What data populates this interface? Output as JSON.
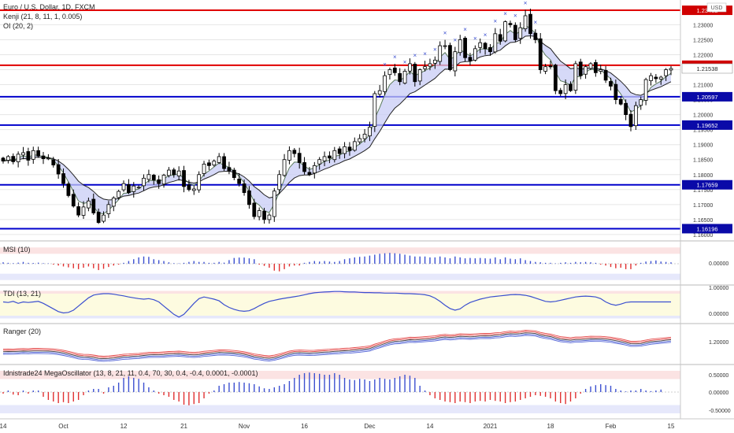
{
  "colors": {
    "up": "#ffffff",
    "down": "#000000",
    "wick": "#000000",
    "hline_blue": "#0000cc",
    "hline_red": "#e00000",
    "band_green": "#5a7a5a",
    "band_dark": "#222222",
    "band_fill_blue": "#c8ccf5",
    "band_fill_red": "#f5c8cc",
    "signal_blue": "#3b4fd0",
    "signal_red": "#e03030",
    "zone_red": "#fbe3e3",
    "zone_blue": "#e6e8fb",
    "zone_yellow": "#fdfbe0",
    "tag_blue": "#0a0aa8",
    "tag_red": "#d00000",
    "axis_text": "#333333",
    "grid": "#e6e6e6"
  },
  "chart_data": [
    {
      "type": "candlestick",
      "pane": "price",
      "title": "Euro / U.S. Dollar, 1D, FXCM",
      "indicator_lines": [
        "Kenji (21, 8, 11, 1, 0.005)",
        "OI (20, 2)"
      ],
      "currency_badge": "USD",
      "x_ticks": [
        "14",
        "Oct",
        "12",
        "21",
        "Nov",
        "16",
        "Dec",
        "14",
        "2021",
        "18",
        "Feb",
        "15"
      ],
      "y_ticks": [
        1.16,
        1.165,
        1.17,
        1.175,
        1.18,
        1.185,
        1.19,
        1.195,
        1.2,
        1.205,
        1.21,
        1.215,
        1.22,
        1.225,
        1.23,
        1.235
      ],
      "y_tick_labels": [
        "1.16000",
        "1.16500",
        "1.17000",
        "1.17500",
        "1.18000",
        "1.18500",
        "1.19000",
        "1.19500",
        "1.20000",
        "1.20500",
        "1.21000",
        "1.21500",
        "1.22000",
        "1.22500",
        "1.23000",
        "1.23500"
      ],
      "ylim": [
        1.1605,
        1.2372
      ],
      "current_price": "1.21538",
      "hlines": [
        {
          "value": 1.23482,
          "label": "1.23482",
          "color": "red"
        },
        {
          "value": 1.21649,
          "label": "1.21649",
          "color": "red"
        },
        {
          "value": 1.20597,
          "label": "1.20597",
          "color": "blue"
        },
        {
          "value": 1.19652,
          "label": "1.19652",
          "color": "blue"
        },
        {
          "value": 1.17659,
          "label": "1.17659",
          "color": "blue"
        },
        {
          "value": 1.16196,
          "label": "1.16196",
          "color": "blue"
        }
      ],
      "closes": [
        1.1845,
        1.186,
        1.1843,
        1.1868,
        1.1873,
        1.1848,
        1.188,
        1.1862,
        1.1853,
        1.1855,
        1.1832,
        1.1802,
        1.177,
        1.173,
        1.1695,
        1.1665,
        1.1692,
        1.1712,
        1.1672,
        1.164,
        1.1665,
        1.17,
        1.1722,
        1.1744,
        1.177,
        1.174,
        1.1762,
        1.1758,
        1.1788,
        1.18,
        1.1782,
        1.177,
        1.1798,
        1.1815,
        1.18,
        1.1812,
        1.176,
        1.175,
        1.1752,
        1.18,
        1.1835,
        1.183,
        1.1845,
        1.186,
        1.182,
        1.1812,
        1.179,
        1.177,
        1.174,
        1.17,
        1.166,
        1.168,
        1.165,
        1.1665,
        1.1745,
        1.18,
        1.185,
        1.188,
        1.187,
        1.184,
        1.181,
        1.18,
        1.183,
        1.185,
        1.186,
        1.1855,
        1.188,
        1.187,
        1.1893,
        1.188,
        1.191,
        1.192,
        1.1935,
        1.1958,
        1.207,
        1.208,
        1.213,
        1.215,
        1.214,
        1.211,
        1.2145,
        1.217,
        1.211,
        1.215,
        1.216,
        1.217,
        1.2182,
        1.223,
        1.223,
        1.215,
        1.221,
        1.225,
        1.219,
        1.218,
        1.222,
        1.224,
        1.222,
        1.221,
        1.227,
        1.2245,
        1.231,
        1.23,
        1.225,
        1.229,
        1.233,
        1.227,
        1.225,
        1.215,
        1.216,
        1.216,
        1.208,
        1.207,
        1.21,
        1.208,
        1.217,
        1.213,
        1.216,
        1.217,
        1.214,
        1.215,
        1.2115,
        1.2095,
        1.205,
        1.2035,
        1.2,
        1.196,
        1.203,
        1.205,
        1.2117,
        1.213,
        1.212,
        1.2125,
        1.215,
        1.2154
      ]
    },
    {
      "type": "bar",
      "pane": "oscillator",
      "title": "MSI (10)",
      "y_tick_labels": [
        "0.00000"
      ],
      "ylim": [
        -1,
        1
      ],
      "values": [
        0.08,
        0.05,
        0.03,
        0.06,
        0.1,
        0.05,
        0.04,
        0.06,
        0.03,
        0.02,
        -0.05,
        -0.1,
        -0.15,
        -0.2,
        -0.25,
        -0.3,
        -0.22,
        -0.15,
        -0.25,
        -0.35,
        -0.28,
        -0.18,
        -0.1,
        -0.05,
        0.05,
        0.15,
        0.25,
        0.35,
        0.4,
        0.38,
        0.25,
        0.2,
        0.15,
        0.08,
        0.03,
        0.02,
        0.05,
        0.1,
        0.15,
        0.1,
        0.1,
        0.05,
        0.05,
        0.1,
        0.06,
        0.2,
        0.32,
        0.34,
        0.34,
        0.3,
        0.25,
        -0.05,
        -0.12,
        -0.22,
        -0.38,
        -0.42,
        -0.3,
        -0.15,
        -0.1,
        -0.1,
        0.05,
        0.1,
        0.15,
        0.12,
        0.15,
        0.12,
        0.1,
        0.15,
        0.25,
        0.3,
        0.35,
        0.38,
        0.4,
        0.45,
        0.5,
        0.55,
        0.58,
        0.6,
        0.58,
        0.55,
        0.5,
        0.45,
        0.4,
        0.4,
        0.4,
        0.35,
        0.35,
        0.4,
        0.35,
        0.3,
        0.4,
        0.35,
        0.3,
        0.32,
        0.3,
        0.32,
        0.3,
        0.28,
        0.35,
        0.25,
        0.35,
        0.28,
        0.25,
        0.3,
        0.2,
        0.15,
        0.1,
        0.08,
        0.05,
        0.05,
        0.02,
        0.05,
        0.08,
        0.05,
        0.1,
        0.08,
        0.1,
        0.08,
        0.05,
        -0.05,
        -0.1,
        -0.18,
        -0.25,
        -0.22,
        -0.3,
        -0.3,
        -0.1,
        0.05,
        0.12,
        0.15,
        0.18,
        0.12,
        0.1,
        0.08
      ]
    },
    {
      "type": "line",
      "pane": "oscillator",
      "title": "TDI (13, 21)",
      "y_tick_labels": [
        "1.00000",
        "0.00000"
      ],
      "ylim": [
        -0.1,
        1.1
      ],
      "values": [
        0.6,
        0.58,
        0.62,
        0.55,
        0.6,
        0.58,
        0.6,
        0.62,
        0.55,
        0.45,
        0.35,
        0.25,
        0.2,
        0.22,
        0.3,
        0.45,
        0.6,
        0.75,
        0.85,
        0.88,
        0.9,
        0.9,
        0.88,
        0.85,
        0.82,
        0.78,
        0.75,
        0.72,
        0.7,
        0.72,
        0.68,
        0.6,
        0.45,
        0.3,
        0.15,
        0.05,
        0.15,
        0.35,
        0.55,
        0.72,
        0.78,
        0.74,
        0.7,
        0.64,
        0.5,
        0.4,
        0.33,
        0.28,
        0.26,
        0.28,
        0.36,
        0.46,
        0.55,
        0.62,
        0.66,
        0.7,
        0.73,
        0.76,
        0.79,
        0.82,
        0.86,
        0.9,
        0.93,
        0.95,
        0.96,
        0.97,
        0.98,
        0.98,
        0.97,
        0.96,
        0.96,
        0.95,
        0.94,
        0.94,
        0.93,
        0.93,
        0.92,
        0.92,
        0.92,
        0.91,
        0.9,
        0.9,
        0.89,
        0.88,
        0.86,
        0.82,
        0.74,
        0.62,
        0.48,
        0.36,
        0.3,
        0.35,
        0.48,
        0.58,
        0.64,
        0.7,
        0.74,
        0.78,
        0.8,
        0.82,
        0.84,
        0.86,
        0.87,
        0.86,
        0.84,
        0.8,
        0.74,
        0.68,
        0.62,
        0.6,
        0.62,
        0.66,
        0.7,
        0.74,
        0.78,
        0.8,
        0.81,
        0.8,
        0.78,
        0.72,
        0.6,
        0.52,
        0.48,
        0.52,
        0.58,
        0.6,
        0.6,
        0.6,
        0.6,
        0.6,
        0.6,
        0.6,
        0.6,
        0.6
      ]
    },
    {
      "type": "line",
      "pane": "oscillator",
      "title": "Ranger (20)",
      "y_tick_labels": [
        "1.20000"
      ],
      "ylim": [
        1.16,
        1.245
      ],
      "values": []
    },
    {
      "type": "bar",
      "pane": "oscillator",
      "title": "Idnistrade24 MegaOscillator (13, 8, 21, 11, 0.4, 70, 30, 0.4, -0.4, 0.0001, -0.0001)",
      "y_tick_labels": [
        "0.50000",
        "0.00000",
        "-0.50000"
      ],
      "ylim": [
        -0.75,
        0.75
      ],
      "values": [
        -0.05,
        0.05,
        -0.08,
        -0.1,
        0.05,
        -0.05,
        0.05,
        0.05,
        -0.15,
        -0.25,
        -0.3,
        -0.35,
        -0.32,
        -0.35,
        -0.3,
        -0.25,
        -0.1,
        0.05,
        0.1,
        0.1,
        -0.05,
        0.15,
        0.2,
        0.3,
        0.45,
        0.5,
        0.45,
        0.42,
        0.3,
        0.15,
        0.05,
        -0.05,
        -0.1,
        -0.15,
        -0.25,
        -0.3,
        -0.4,
        -0.42,
        -0.38,
        -0.35,
        -0.2,
        -0.05,
        0.05,
        0.2,
        0.25,
        0.3,
        0.3,
        0.32,
        0.3,
        0.28,
        0.25,
        0.18,
        0.12,
        0.1,
        0.15,
        0.2,
        0.25,
        0.35,
        0.45,
        0.55,
        0.6,
        0.62,
        0.6,
        0.58,
        0.55,
        0.55,
        0.6,
        0.55,
        0.45,
        0.4,
        0.38,
        0.42,
        0.4,
        0.35,
        0.4,
        0.45,
        0.42,
        0.4,
        0.45,
        0.5,
        0.55,
        0.52,
        0.45,
        0.2,
        0.05,
        -0.1,
        -0.2,
        -0.25,
        -0.3,
        -0.32,
        -0.35,
        -0.3,
        -0.32,
        -0.35,
        -0.3,
        -0.28,
        -0.3,
        -0.25,
        -0.28,
        -0.3,
        -0.35,
        -0.32,
        -0.3,
        -0.25,
        -0.2,
        -0.15,
        -0.1,
        -0.12,
        -0.15,
        -0.2,
        -0.3,
        -0.35,
        -0.38,
        -0.3,
        -0.2,
        -0.05,
        0.1,
        0.18,
        0.22,
        0.25,
        0.22,
        0.2,
        0.1,
        0.05,
        0.02,
        0.05,
        0.05,
        0.1,
        0.05,
        0.03,
        0.05,
        0.08
      ]
    }
  ]
}
